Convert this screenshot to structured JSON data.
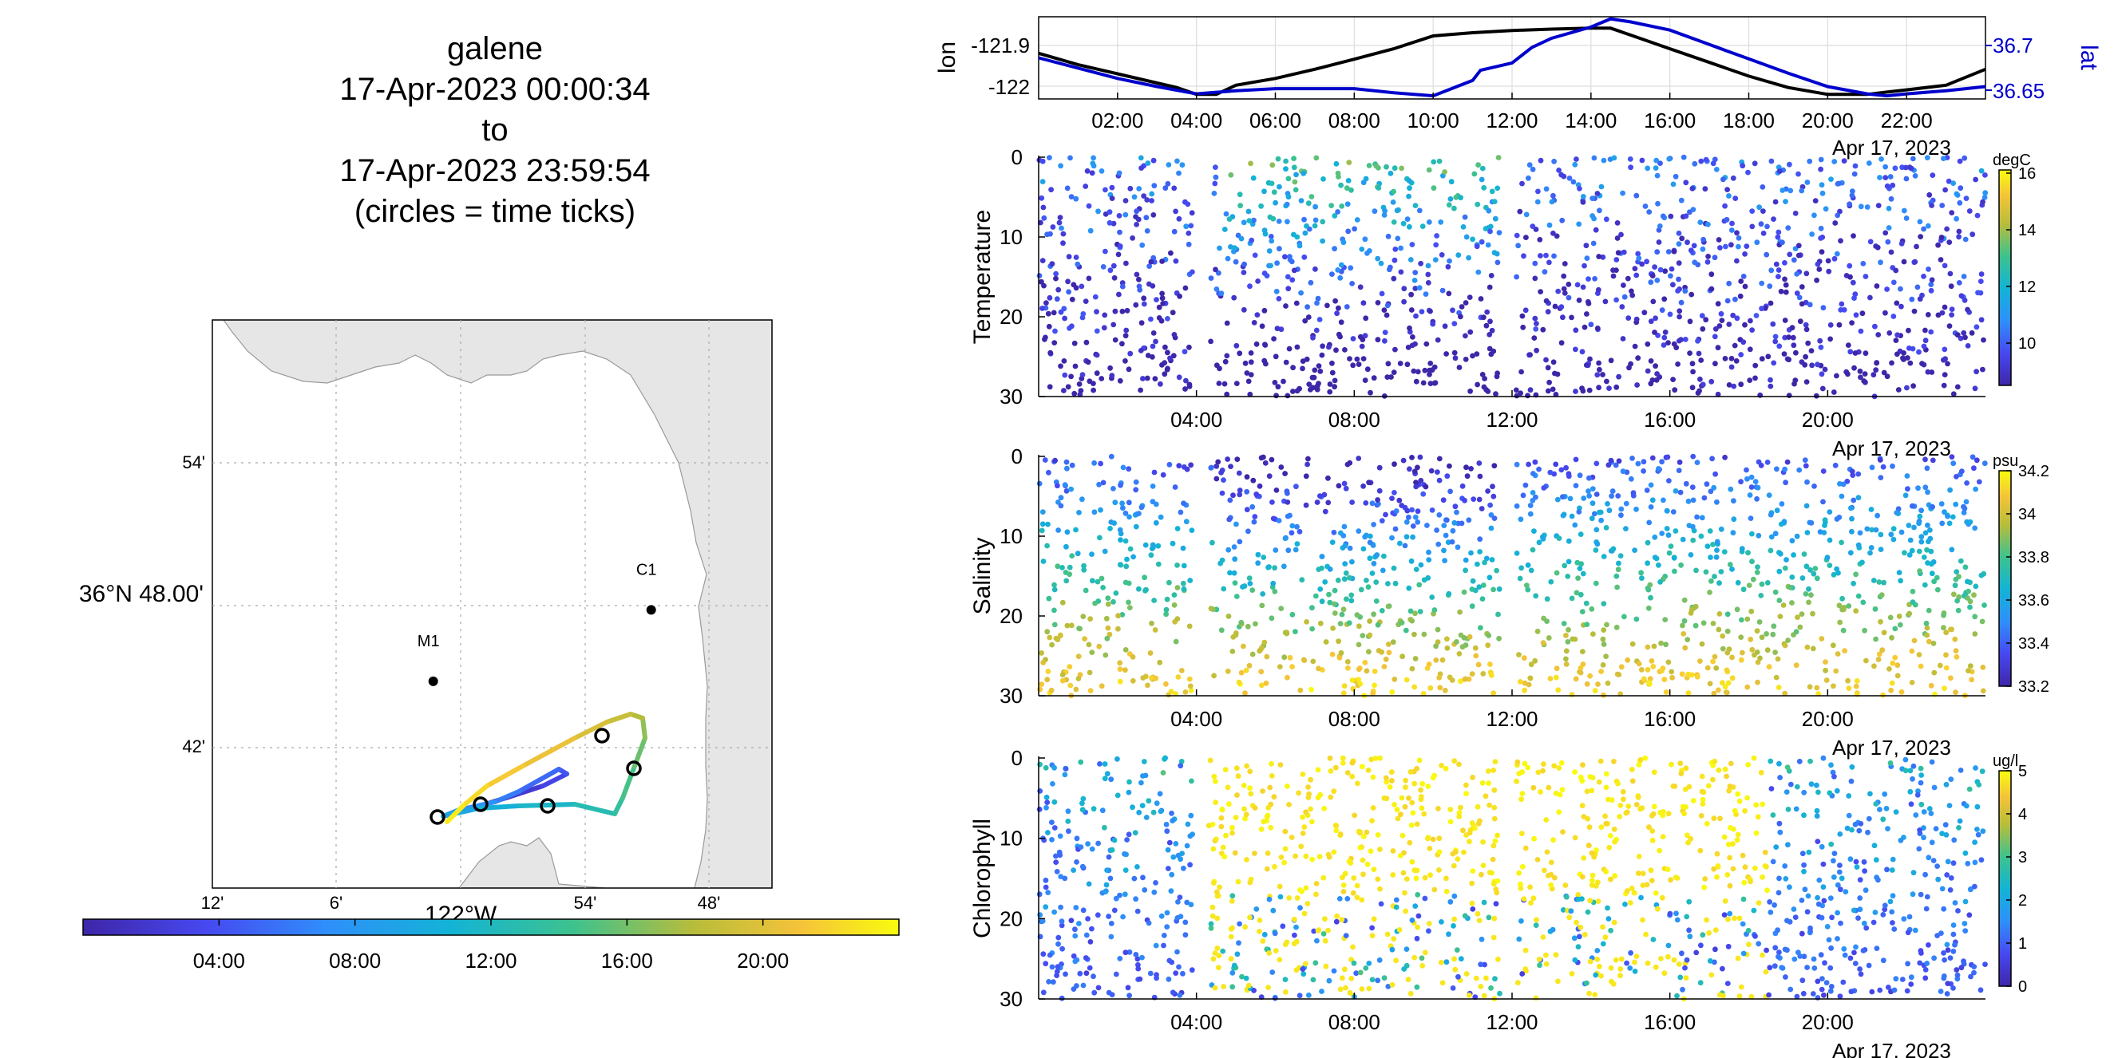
{
  "title": {
    "platform": "galene",
    "start": "17-Apr-2023 00:00:34",
    "to": "to",
    "end": "17-Apr-2023 23:59:54",
    "note": "(circles = time ticks)"
  },
  "map": {
    "lat_ticks": [
      "54'",
      "36°N 48.00'",
      "42'"
    ],
    "lon_ticks": [
      "12'",
      "6'",
      "122°W",
      "54'",
      "48'"
    ],
    "stations": [
      {
        "name": "C1",
        "lat": 36.797,
        "lon": -121.847
      },
      {
        "name": "M1",
        "lat": 36.747,
        "lon": -122.022
      }
    ],
    "land_color": "#e6e6e6",
    "colorbar_ticks": [
      "04:00",
      "08:00",
      "12:00",
      "16:00",
      "20:00"
    ]
  },
  "lonlat": {
    "ylabel_left": "lon",
    "ylabel_right": "lat",
    "left_ticks": [
      "-121.9",
      "-122"
    ],
    "right_ticks": [
      "36.7",
      "36.65"
    ],
    "x_ticks": [
      "02:00",
      "04:00",
      "06:00",
      "08:00",
      "10:00",
      "12:00",
      "14:00",
      "16:00",
      "18:00",
      "20:00",
      "22:00"
    ],
    "date_label": "Apr 17, 2023",
    "lat_color": "#0000cc"
  },
  "panels": [
    {
      "ylabel": "Temperature",
      "unit": "degC",
      "cbar_ticks": [
        "16",
        "14",
        "12",
        "10"
      ],
      "date_label": "Apr 17, 2023"
    },
    {
      "ylabel": "Salinity",
      "unit": "psu",
      "cbar_ticks": [
        "34.2",
        "34",
        "33.8",
        "33.6",
        "33.4",
        "33.2"
      ],
      "date_label": "Apr 17, 2023"
    },
    {
      "ylabel": "Chlorophyll",
      "unit": "ug/l",
      "cbar_ticks": [
        "5",
        "4",
        "3",
        "2",
        "1",
        "0"
      ],
      "date_label": "Apr 17, 2023"
    }
  ],
  "panel_x_ticks": [
    "04:00",
    "08:00",
    "12:00",
    "16:00",
    "20:00"
  ],
  "panel_y_ticks": [
    "0",
    "10",
    "20",
    "30"
  ],
  "chart_data": [
    {
      "type": "line",
      "title": "",
      "xlabel": "",
      "xlim": [
        0,
        24
      ],
      "series": [
        {
          "name": "lon",
          "axis": "left",
          "ylim": [
            -122.03,
            -121.85
          ],
          "x": [
            0,
            1,
            2,
            3,
            3.5,
            4,
            4.5,
            5,
            6,
            7,
            8,
            9,
            10,
            11,
            12,
            13,
            14,
            14.5,
            15,
            16,
            17,
            18,
            19,
            20,
            21,
            21.5,
            22,
            23,
            24
          ],
          "y": [
            -121.93,
            -121.955,
            -121.975,
            -121.995,
            -122.005,
            -122.02,
            -122.02,
            -122.0,
            -121.985,
            -121.965,
            -121.943,
            -121.92,
            -121.892,
            -121.885,
            -121.88,
            -121.877,
            -121.875,
            -121.875,
            -121.89,
            -121.92,
            -121.95,
            -121.98,
            -122.005,
            -122.02,
            -122.02,
            -122.015,
            -122.01,
            -122.0,
            -121.965
          ]
        },
        {
          "name": "lat",
          "axis": "right",
          "ylim": [
            36.64,
            36.72
          ],
          "x": [
            0,
            2,
            3,
            4,
            5,
            6,
            7,
            8,
            9,
            10,
            11,
            11.2,
            12,
            12.5,
            13,
            14,
            14.5,
            15,
            16,
            17,
            18,
            19,
            20,
            21,
            21.5,
            22,
            23,
            24
          ],
          "y": [
            36.68,
            36.66,
            36.652,
            36.645,
            36.648,
            36.65,
            36.65,
            36.65,
            36.646,
            36.643,
            36.658,
            36.668,
            36.675,
            36.69,
            36.699,
            36.71,
            36.718,
            36.715,
            36.707,
            36.693,
            36.679,
            36.665,
            36.652,
            36.645,
            36.643,
            36.645,
            36.648,
            36.652
          ]
        }
      ]
    },
    {
      "type": "scatter",
      "title": "",
      "ylabel": "Temperature",
      "ylim": [
        30,
        0
      ],
      "xlim": [
        0,
        24
      ],
      "clim": [
        8.5,
        16.5
      ],
      "colorbar_unit": "degC"
    },
    {
      "type": "scatter",
      "title": "",
      "ylabel": "Salinity",
      "ylim": [
        30,
        0
      ],
      "xlim": [
        0,
        24
      ],
      "clim": [
        33.2,
        34.2
      ],
      "colorbar_unit": "psu"
    },
    {
      "type": "scatter",
      "title": "",
      "ylabel": "Chlorophyll",
      "ylim": [
        30,
        0
      ],
      "xlim": [
        0,
        24
      ],
      "clim": [
        0,
        5
      ],
      "colorbar_unit": "ug/l"
    }
  ]
}
